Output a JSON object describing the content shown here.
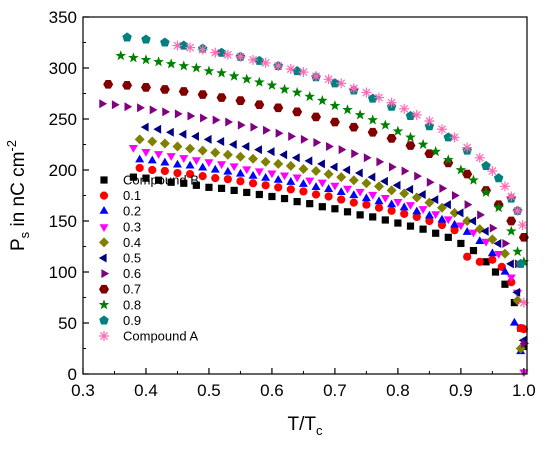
{
  "chart_data": {
    "type": "scatter",
    "xlabel": {
      "main": "T/T",
      "sub": "c"
    },
    "ylabel": {
      "main": "P",
      "sub": "s",
      "rest": " in nC cm",
      "sup": "-2"
    },
    "xlim": [
      0.3,
      1.005
    ],
    "ylim": [
      0,
      350
    ],
    "xticks": [
      "0.3",
      "0.4",
      "0.5",
      "0.6",
      "0.7",
      "0.8",
      "0.9",
      "1.0"
    ],
    "yticks": [
      "0",
      "50",
      "100",
      "150",
      "200",
      "250",
      "300",
      "350"
    ],
    "grid": false,
    "legend_position": "left",
    "series": [
      {
        "name": "Compound B",
        "marker": "square",
        "color": "#000000",
        "x": [
          0.38,
          0.4,
          0.42,
          0.44,
          0.46,
          0.48,
          0.5,
          0.52,
          0.54,
          0.56,
          0.58,
          0.6,
          0.62,
          0.64,
          0.66,
          0.68,
          0.7,
          0.72,
          0.74,
          0.76,
          0.78,
          0.8,
          0.82,
          0.84,
          0.86,
          0.88,
          0.9,
          0.92,
          0.94,
          0.955,
          0.97,
          0.985,
          0.995,
          1.0
        ],
        "y": [
          193,
          192,
          190,
          188,
          187,
          185,
          183,
          182,
          180,
          178,
          176,
          174,
          172,
          169,
          167,
          164,
          162,
          159,
          156,
          154,
          151,
          148,
          145,
          142,
          138,
          134,
          128,
          121,
          110,
          100,
          88,
          70,
          45,
          27
        ]
      },
      {
        "name": "0.1",
        "marker": "circle",
        "color": "#ff0000",
        "x": [
          0.39,
          0.41,
          0.43,
          0.45,
          0.47,
          0.49,
          0.51,
          0.53,
          0.55,
          0.57,
          0.59,
          0.61,
          0.63,
          0.65,
          0.67,
          0.69,
          0.71,
          0.73,
          0.75,
          0.77,
          0.79,
          0.81,
          0.83,
          0.85,
          0.87,
          0.89,
          0.91,
          0.93,
          0.95,
          0.965,
          0.98,
          0.995,
          1.0
        ],
        "y": [
          202,
          200,
          199,
          197,
          196,
          194,
          192,
          191,
          189,
          187,
          185,
          183,
          181,
          179,
          176,
          174,
          171,
          168,
          166,
          163,
          160,
          157,
          154,
          150,
          146,
          141,
          115,
          110,
          112,
          105,
          90,
          45,
          44
        ]
      },
      {
        "name": "0.2",
        "marker": "triangle-up",
        "color": "#0000ff",
        "x": [
          0.39,
          0.41,
          0.43,
          0.45,
          0.47,
          0.49,
          0.51,
          0.53,
          0.55,
          0.57,
          0.59,
          0.61,
          0.63,
          0.65,
          0.67,
          0.69,
          0.71,
          0.73,
          0.75,
          0.77,
          0.79,
          0.81,
          0.83,
          0.85,
          0.87,
          0.89,
          0.91,
          0.93,
          0.95,
          0.97,
          0.985,
          0.995
        ],
        "y": [
          210,
          209,
          207,
          205,
          204,
          202,
          200,
          198,
          196,
          194,
          192,
          190,
          188,
          186,
          183,
          181,
          178,
          175,
          172,
          169,
          166,
          163,
          159,
          155,
          151,
          146,
          139,
          130,
          118,
          100,
          50,
          22
        ]
      },
      {
        "name": "0.3",
        "marker": "triangle-down",
        "color": "#ff00ff",
        "x": [
          0.38,
          0.4,
          0.42,
          0.44,
          0.46,
          0.48,
          0.5,
          0.52,
          0.54,
          0.56,
          0.58,
          0.6,
          0.62,
          0.64,
          0.66,
          0.68,
          0.7,
          0.72,
          0.74,
          0.76,
          0.78,
          0.8,
          0.82,
          0.84,
          0.86,
          0.88,
          0.9,
          0.92,
          0.94,
          0.96,
          0.98,
          0.99,
          1.0
        ],
        "y": [
          222,
          218,
          216,
          214,
          212,
          210,
          208,
          206,
          204,
          201,
          199,
          197,
          195,
          193,
          190,
          188,
          185,
          182,
          179,
          176,
          173,
          169,
          166,
          162,
          157,
          152,
          146,
          139,
          130,
          118,
          95,
          80,
          2
        ]
      },
      {
        "name": "0.4",
        "marker": "diamond",
        "color": "#808000",
        "x": [
          0.39,
          0.41,
          0.43,
          0.45,
          0.47,
          0.49,
          0.51,
          0.53,
          0.55,
          0.57,
          0.59,
          0.61,
          0.63,
          0.65,
          0.67,
          0.69,
          0.71,
          0.73,
          0.75,
          0.77,
          0.79,
          0.81,
          0.83,
          0.85,
          0.87,
          0.89,
          0.91,
          0.93,
          0.95,
          0.97,
          0.99,
          0.995
        ],
        "y": [
          230,
          228,
          226,
          223,
          221,
          219,
          217,
          215,
          213,
          211,
          208,
          206,
          204,
          201,
          199,
          196,
          193,
          190,
          187,
          184,
          180,
          177,
          173,
          168,
          163,
          158,
          150,
          142,
          132,
          118,
          72,
          25
        ]
      },
      {
        "name": "0.5",
        "marker": "triangle-left",
        "color": "#000080",
        "x": [
          0.4,
          0.42,
          0.44,
          0.46,
          0.48,
          0.5,
          0.52,
          0.54,
          0.56,
          0.58,
          0.6,
          0.62,
          0.64,
          0.66,
          0.68,
          0.7,
          0.72,
          0.74,
          0.76,
          0.78,
          0.8,
          0.82,
          0.84,
          0.86,
          0.88,
          0.9,
          0.92,
          0.94,
          0.96,
          0.98,
          0.99,
          1.0
        ],
        "y": [
          242,
          240,
          237,
          235,
          233,
          230,
          228,
          225,
          223,
          220,
          218,
          215,
          212,
          209,
          206,
          203,
          200,
          197,
          193,
          189,
          185,
          181,
          176,
          171,
          166,
          158,
          150,
          140,
          128,
          108,
          80,
          33
        ]
      },
      {
        "name": "0.6",
        "marker": "triangle-right",
        "color": "#800080",
        "x": [
          0.33,
          0.35,
          0.37,
          0.39,
          0.41,
          0.43,
          0.45,
          0.47,
          0.49,
          0.51,
          0.53,
          0.55,
          0.57,
          0.59,
          0.61,
          0.63,
          0.65,
          0.67,
          0.69,
          0.71,
          0.73,
          0.75,
          0.77,
          0.79,
          0.81,
          0.83,
          0.85,
          0.87,
          0.89,
          0.91,
          0.93,
          0.95,
          0.97,
          0.99,
          1.0
        ],
        "y": [
          265,
          264,
          262,
          261,
          259,
          257,
          255,
          253,
          251,
          249,
          247,
          244,
          242,
          239,
          236,
          233,
          230,
          227,
          223,
          220,
          216,
          212,
          208,
          203,
          199,
          194,
          188,
          182,
          175,
          166,
          156,
          143,
          128,
          108,
          30
        ]
      },
      {
        "name": "0.7",
        "marker": "hexagon",
        "color": "#800000",
        "x": [
          0.34,
          0.37,
          0.4,
          0.43,
          0.46,
          0.49,
          0.52,
          0.55,
          0.58,
          0.61,
          0.64,
          0.67,
          0.7,
          0.73,
          0.76,
          0.79,
          0.82,
          0.85,
          0.88,
          0.91,
          0.94,
          0.96,
          0.98,
          1.0
        ],
        "y": [
          284,
          283,
          281,
          279,
          277,
          274,
          271,
          268,
          264,
          261,
          257,
          252,
          247,
          242,
          237,
          231,
          224,
          216,
          207,
          196,
          180,
          166,
          150,
          134
        ]
      },
      {
        "name": "0.8",
        "marker": "star",
        "color": "#008000",
        "x": [
          0.36,
          0.38,
          0.4,
          0.42,
          0.44,
          0.46,
          0.48,
          0.5,
          0.52,
          0.54,
          0.56,
          0.58,
          0.6,
          0.62,
          0.64,
          0.66,
          0.68,
          0.7,
          0.72,
          0.74,
          0.76,
          0.78,
          0.8,
          0.82,
          0.84,
          0.86,
          0.88,
          0.9,
          0.92,
          0.94,
          0.96,
          0.98,
          0.99,
          1.0
        ],
        "y": [
          312,
          310,
          308,
          306,
          304,
          302,
          300,
          297,
          295,
          292,
          289,
          286,
          283,
          279,
          276,
          272,
          268,
          263,
          259,
          254,
          249,
          244,
          238,
          232,
          225,
          218,
          210,
          200,
          190,
          178,
          163,
          140,
          120,
          110
        ]
      },
      {
        "name": "0.9",
        "marker": "pentagon",
        "color": "#008080",
        "x": [
          0.37,
          0.4,
          0.43,
          0.46,
          0.49,
          0.52,
          0.55,
          0.58,
          0.61,
          0.64,
          0.67,
          0.7,
          0.73,
          0.76,
          0.79,
          0.82,
          0.85,
          0.88,
          0.91,
          0.94,
          0.96,
          0.98,
          0.99,
          0.995
        ],
        "y": [
          330,
          328,
          325,
          322,
          319,
          315,
          311,
          307,
          302,
          297,
          291,
          285,
          278,
          270,
          262,
          253,
          243,
          232,
          219,
          204,
          192,
          172,
          160,
          108
        ]
      },
      {
        "name": "Compound A",
        "marker": "asterisk",
        "color": "#ff69b4",
        "x": [
          0.45,
          0.47,
          0.49,
          0.51,
          0.53,
          0.55,
          0.57,
          0.59,
          0.61,
          0.63,
          0.65,
          0.67,
          0.69,
          0.71,
          0.73,
          0.75,
          0.77,
          0.79,
          0.81,
          0.83,
          0.85,
          0.87,
          0.89,
          0.91,
          0.93,
          0.95,
          0.97,
          0.98,
          0.99,
          1.0
        ],
        "y": [
          322,
          320,
          318,
          315,
          313,
          311,
          308,
          305,
          302,
          299,
          296,
          292,
          289,
          285,
          280,
          276,
          271,
          266,
          260,
          254,
          248,
          240,
          232,
          222,
          212,
          199,
          184,
          174,
          160,
          70
        ]
      }
    ]
  },
  "extra_points": [
    {
      "series": 10,
      "x": 0.998,
      "y": 146
    }
  ]
}
